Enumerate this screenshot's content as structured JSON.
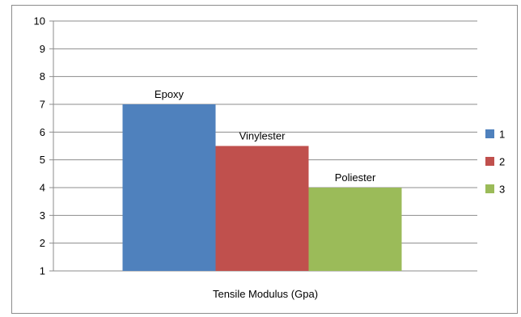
{
  "chart_data": {
    "type": "bar",
    "xlabel": "Tensile Modulus (Gpa)",
    "ylabel": "",
    "ylim": [
      1,
      10
    ],
    "yticks": [
      1,
      2,
      3,
      4,
      5,
      6,
      7,
      8,
      9,
      10
    ],
    "grid": true,
    "legend_position": "right",
    "series": [
      {
        "name": "1",
        "label": "Epoxy",
        "value": 7,
        "color": "#4f81bd"
      },
      {
        "name": "2",
        "label": "Vinylester",
        "value": 5.5,
        "color": "#c0504d"
      },
      {
        "name": "3",
        "label": "Poliester",
        "value": 4,
        "color": "#9bbb59"
      }
    ]
  }
}
